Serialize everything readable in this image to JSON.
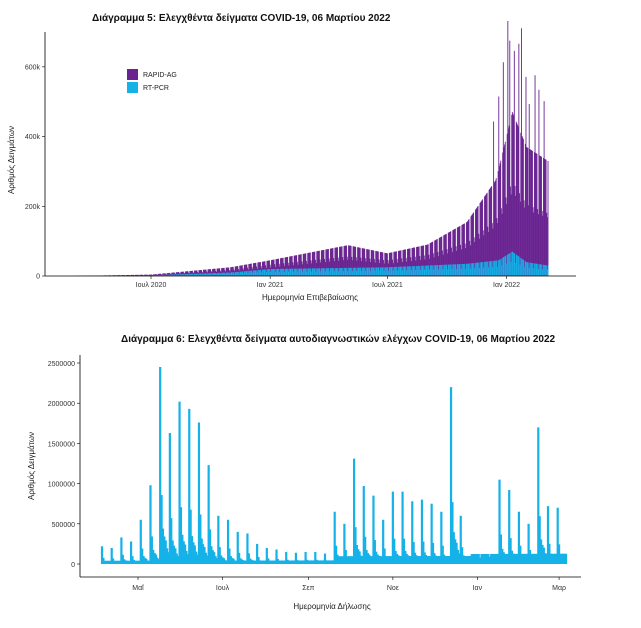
{
  "colors": {
    "rapid": "#6a2491",
    "pcr": "#15b2e8",
    "axis": "#000000"
  },
  "chart_data": [
    {
      "type": "bar",
      "title": "Διάγραμμα 5: Ελεγχθέντα δείγματα COVID-19, 06 Μαρτίου 2022",
      "xlabel": "Ημερομηνία Επιβεβαίωσης",
      "ylabel": "Αριθμός Δειγμάτων",
      "x_ticks": [
        "Ιουλ 2020",
        "Ιαν 2021",
        "Ιουλ 2021",
        "Ιαν 2022"
      ],
      "y_ticks": [
        "0",
        "200k",
        "400k",
        "600k"
      ],
      "ylim": [
        0,
        700000
      ],
      "legend_position": "top-left",
      "series": [
        {
          "name": "RAPID-AG",
          "envelope": [
            [
              "2020-03-01",
              0
            ],
            [
              "2020-07-01",
              2000
            ],
            [
              "2020-11-01",
              15000
            ],
            [
              "2021-01-01",
              25000
            ],
            [
              "2021-05-01",
              65000
            ],
            [
              "2021-07-01",
              40000
            ],
            [
              "2021-09-01",
              60000
            ],
            [
              "2021-11-01",
              120000
            ],
            [
              "2021-12-15",
              230000
            ],
            [
              "2022-01-10",
              400000
            ],
            [
              "2022-02-01",
              330000
            ],
            [
              "2022-03-06",
              300000
            ]
          ],
          "peaks": [
            [
              "2021-12-12",
              400000
            ],
            [
              "2021-12-20",
              470000
            ],
            [
              "2021-12-27",
              560000
            ],
            [
              "2022-01-03",
              670000
            ],
            [
              "2022-01-06",
              610000
            ],
            [
              "2022-01-13",
              580000
            ],
            [
              "2022-01-20",
              610000
            ],
            [
              "2022-01-24",
              660000
            ],
            [
              "2022-01-31",
              530000
            ],
            [
              "2022-02-05",
              470000
            ],
            [
              "2022-02-14",
              540000
            ],
            [
              "2022-02-20",
              500000
            ],
            [
              "2022-02-28",
              470000
            ]
          ]
        },
        {
          "name": "RT-PCR",
          "envelope": [
            [
              "2020-03-01",
              0
            ],
            [
              "2020-07-01",
              2000
            ],
            [
              "2020-11-01",
              10000
            ],
            [
              "2021-01-01",
              20000
            ],
            [
              "2021-07-01",
              25000
            ],
            [
              "2021-11-01",
              35000
            ],
            [
              "2021-12-20",
              45000
            ],
            [
              "2022-01-10",
              70000
            ],
            [
              "2022-02-01",
              40000
            ],
            [
              "2022-03-06",
              30000
            ]
          ]
        }
      ]
    },
    {
      "type": "bar",
      "title": "Διάγραμμα 6: Ελεγχθέντα δείγματα αυτοδιαγνωστικών ελέγχων COVID-19, 06 Μαρτίου 2022",
      "xlabel": "Ημερομηνία Δήλωσης",
      "ylabel": "Αριθμός Δειγμάτων",
      "x_ticks": [
        "Μαΐ",
        "Ιουλ",
        "Σεπ",
        "Νοε",
        "Ιαν",
        "Μαρ"
      ],
      "y_ticks": [
        "0",
        "500000",
        "1000000",
        "1500000",
        "2000000",
        "2500000"
      ],
      "ylim": [
        0,
        2500000
      ],
      "series": [
        {
          "weekly_peaks": [
            220000,
            200000,
            330000,
            280000,
            550000,
            980000,
            2450000,
            1630000,
            2020000,
            1930000,
            1760000,
            1230000,
            600000,
            550000,
            400000,
            380000,
            250000,
            200000,
            180000,
            150000,
            140000,
            150000,
            150000,
            130000,
            650000,
            500000,
            1310000,
            970000,
            850000,
            550000,
            900000,
            900000,
            780000,
            800000,
            750000,
            650000,
            2200000,
            600000,
            100000,
            80000,
            90000,
            1050000,
            920000,
            650000,
            500000,
            1700000,
            720000,
            700000,
            650000
          ]
        }
      ]
    }
  ]
}
